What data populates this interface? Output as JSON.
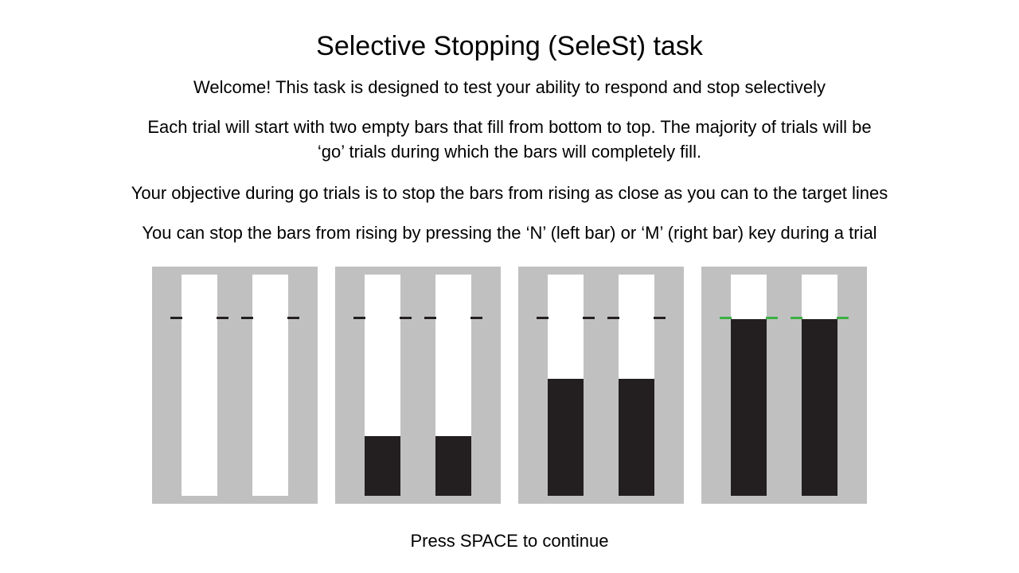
{
  "title": "Selective Stopping (SeleSt) task",
  "instructions": {
    "welcome": "Welcome! This task is designed to test your ability to respond and stop selectively",
    "each_trial_line1": "Each trial will start with two empty bars that fill from bottom to top. The majority of trials will be",
    "each_trial_line2": "‘go’ trials during which the bars will completely fill.",
    "objective": "Your objective during go trials is to stop the bars from rising as close as you can to the target lines",
    "stop": "You can stop the bars from rising by pressing the ‘N’ (left bar) or ‘M’ (right bar) key during a trial"
  },
  "panels": [
    {
      "fill_fraction": 0.0,
      "target_color": "#231f20"
    },
    {
      "fill_fraction": 0.27,
      "target_color": "#231f20"
    },
    {
      "fill_fraction": 0.53,
      "target_color": "#231f20"
    },
    {
      "fill_fraction": 0.8,
      "target_color": "#3cb043"
    }
  ],
  "colors": {
    "panel_background": "#c0c0c1",
    "bar_background": "#ffffff",
    "bar_fill": "#231f20",
    "target_line": "#231f20",
    "target_line_hit": "#3cb043"
  },
  "footer": "Press SPACE to continue"
}
